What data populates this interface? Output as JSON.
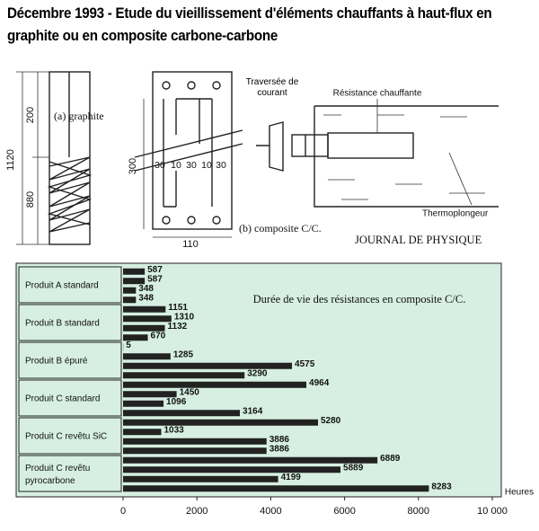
{
  "chart_data": {
    "type": "bar",
    "title": "Décembre 1993 - Etude du vieillissement d'éléments chauffants à haut-flux en graphite ou en composite carbone-carbone",
    "annotation": "Durée de vie des résistances en composite C/C.",
    "x_label": "Heures",
    "orientation": "horizontal",
    "color": "#222222",
    "background": "#d6efe2",
    "groups": [
      {
        "label": "Produit A standard",
        "values": [
          587,
          587,
          348,
          348
        ]
      },
      {
        "label": "Produit B standard",
        "values": [
          1151,
          1310,
          1132,
          670
        ]
      },
      {
        "label": "Produit B épuré",
        "values": [
          5,
          1285,
          4575,
          3290
        ]
      },
      {
        "label": "Produit C standard",
        "values": [
          4964,
          1450,
          1096,
          3164
        ]
      },
      {
        "label": "Produit C revêtu  SiC",
        "values": [
          5280,
          1033,
          3886,
          3886
        ]
      },
      {
        "label": "Produit C revêtu pyrocarbone",
        "values": [
          6889,
          5889,
          4199,
          8283
        ]
      }
    ],
    "xlim": [
      0,
      10000
    ],
    "xticks": [
      0,
      2000,
      4000,
      6000,
      8000,
      {
        "value": 10000,
        "label": "10 000"
      }
    ]
  },
  "figure": {
    "graphite": {
      "label": "(a) graphite",
      "dims": [
        "1120",
        "200",
        "880"
      ]
    },
    "composite": {
      "label": "(b) composite C/C.",
      "dims": [
        "300",
        "30",
        "10",
        "30",
        "10",
        "30",
        "110"
      ]
    },
    "setup": {
      "feedthrough": "Traversée de courant",
      "resistance": "Résistance chauffante",
      "thermo": "Thermoplongeur"
    },
    "source": "JOURNAL DE PHYSIQUE"
  }
}
